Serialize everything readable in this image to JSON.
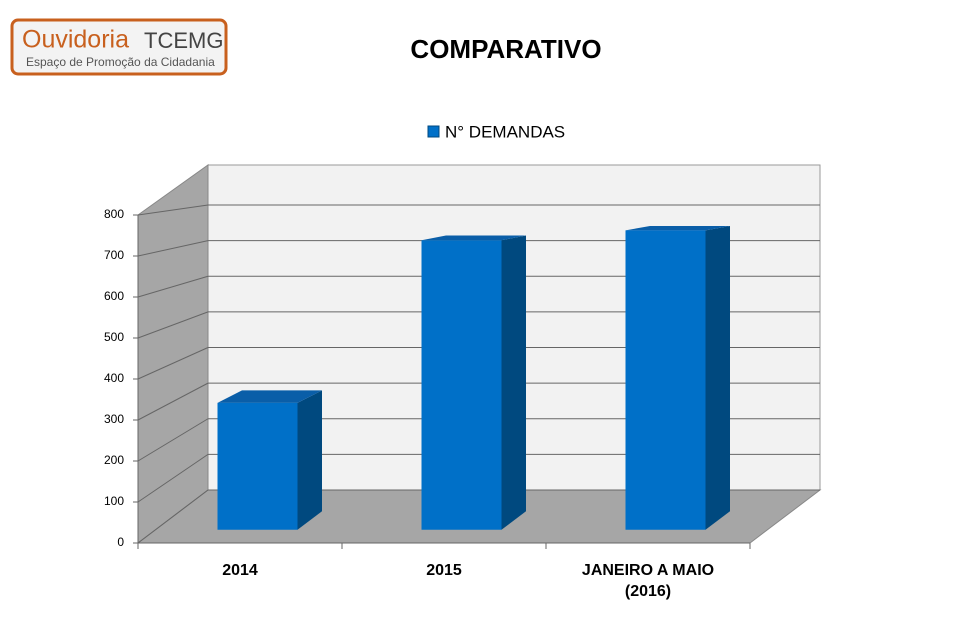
{
  "logo": {
    "name": "Ouvidoria",
    "org": "TCEMG",
    "tagline": "Espaço de Promoção da Cidadania"
  },
  "chart_data": {
    "type": "bar3d",
    "title": "COMPARATIVO",
    "categories": [
      "2014",
      "2015",
      "JANEIRO A MAIO (2016)"
    ],
    "series": [
      {
        "name": "N° DEMANDAS",
        "color": "#0070c8",
        "values": [
          320,
          730,
          755
        ]
      }
    ],
    "ylim": [
      0,
      800
    ],
    "yticks": [
      0,
      100,
      200,
      300,
      400,
      500,
      600,
      700,
      800
    ],
    "grid": true,
    "legend": "top"
  }
}
